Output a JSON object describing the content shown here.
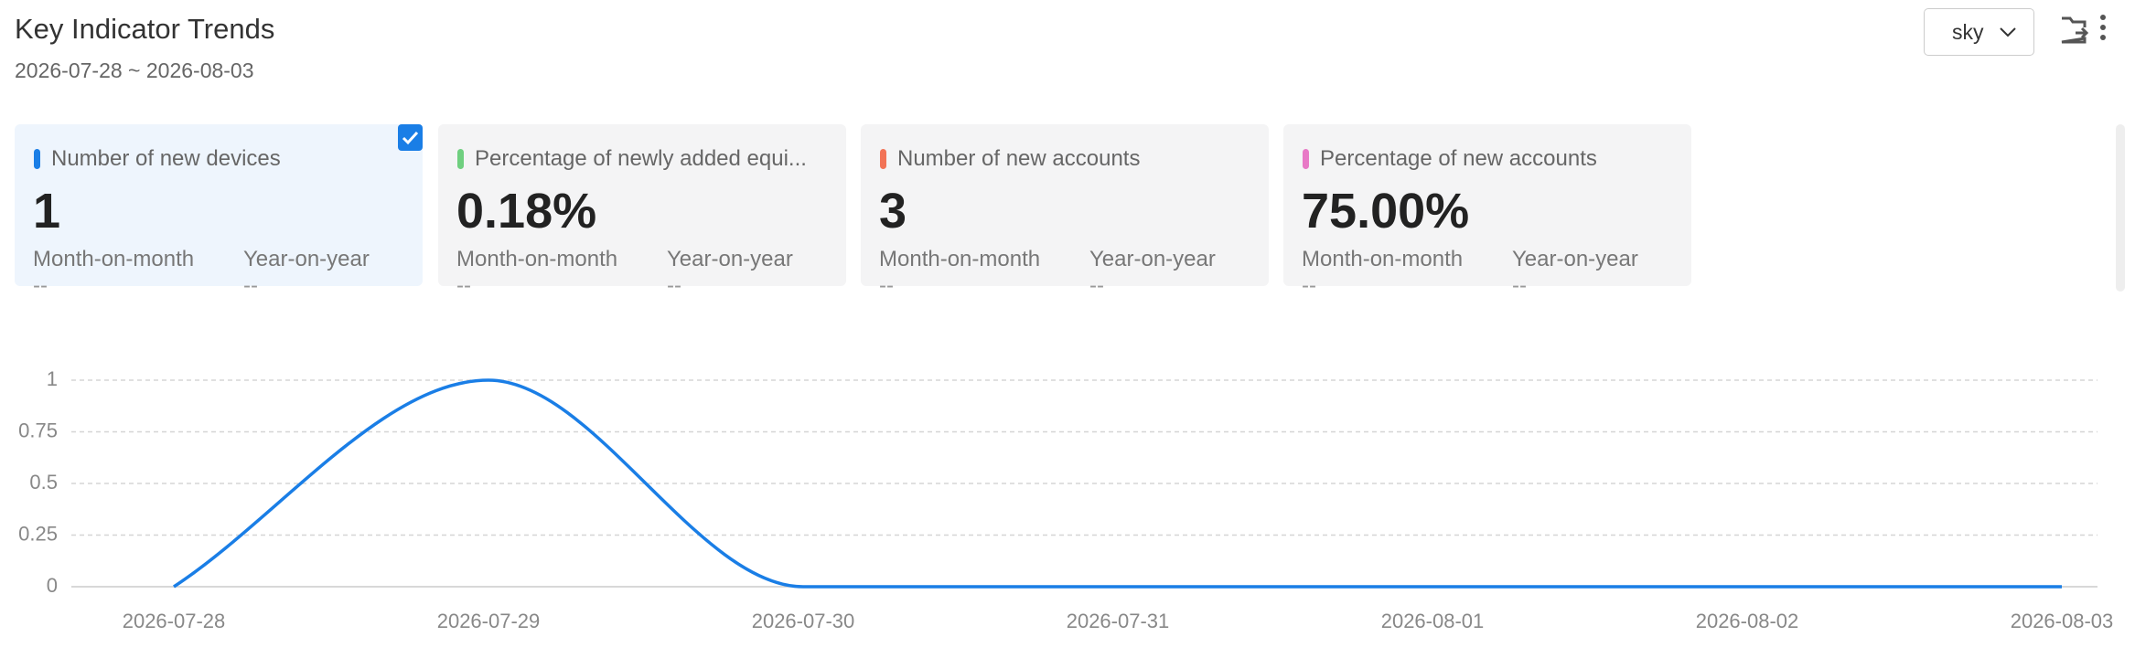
{
  "header": {
    "title": "Key Indicator Trends",
    "subtitle": "2026-07-28 ~ 2026-08-03",
    "dropdown": "sky"
  },
  "indicators": [
    {
      "label": "Number of new devices",
      "value": "1",
      "mom_label": "Month-on-month",
      "yoy_label": "Year-on-year",
      "mom": "--",
      "yoy": "--",
      "color": "#1a7ee6",
      "selected": true
    },
    {
      "label": "Percentage of newly added equi...",
      "value": "0.18%",
      "mom_label": "Month-on-month",
      "yoy_label": "Year-on-year",
      "mom": "--",
      "yoy": "--",
      "color": "#6fcf7f",
      "selected": false
    },
    {
      "label": "Number of new accounts",
      "value": "3",
      "mom_label": "Month-on-month",
      "yoy_label": "Year-on-year",
      "mom": "--",
      "yoy": "--",
      "color": "#f27356",
      "selected": false
    },
    {
      "label": "Percentage of new accounts",
      "value": "75.00%",
      "mom_label": "Month-on-month",
      "yoy_label": "Year-on-year",
      "mom": "--",
      "yoy": "--",
      "color": "#e879c6",
      "selected": false
    }
  ],
  "chart_data": {
    "type": "line",
    "categories": [
      "2026-07-28",
      "2026-07-29",
      "2026-07-30",
      "2026-07-31",
      "2026-08-01",
      "2026-08-02",
      "2026-08-03"
    ],
    "values": [
      0,
      1,
      0,
      0,
      0,
      0,
      0
    ],
    "color": "#1a7ee6",
    "ylim": [
      0,
      1
    ],
    "yticks": [
      0,
      0.25,
      0.5,
      0.75,
      1
    ],
    "grid": true
  }
}
